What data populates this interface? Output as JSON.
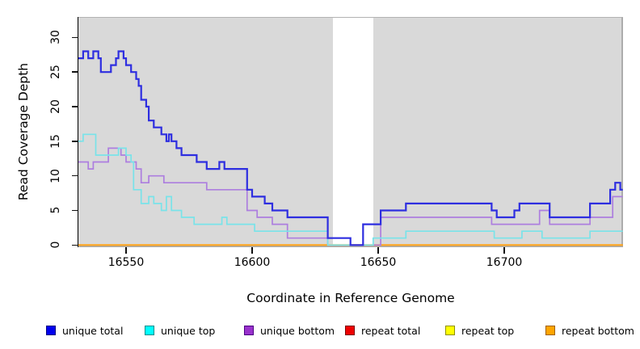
{
  "chart_data": {
    "type": "line",
    "subtype": "step",
    "title": "",
    "xlabel": "Coordinate in Reference Genome",
    "ylabel": "Read Coverage Depth",
    "xlim": [
      16531,
      16747
    ],
    "ylim": [
      0,
      33
    ],
    "xticks": [
      "16550",
      "16600",
      "16650",
      "16700"
    ],
    "xtick_values": [
      16550,
      16600,
      16650,
      16700
    ],
    "yticks": [
      "0",
      "5",
      "10",
      "15",
      "20",
      "25",
      "30"
    ],
    "ytick_values": [
      0,
      5,
      10,
      15,
      20,
      25,
      30
    ],
    "grid": false,
    "panel_background": "#d9d9d9",
    "gap_region": {
      "x_start": 16632,
      "x_end": 16648,
      "color": "#ffffff"
    },
    "legend_position": "bottom",
    "series": [
      {
        "name": "unique total",
        "color": "#2e2ee0",
        "legend_fill": "#0000ee",
        "legend_border": "#000080",
        "z": 6,
        "width": 2.2,
        "points": [
          [
            16531,
            27
          ],
          [
            16533,
            28
          ],
          [
            16535,
            27
          ],
          [
            16537,
            28
          ],
          [
            16539,
            27
          ],
          [
            16540,
            25
          ],
          [
            16544,
            26
          ],
          [
            16546,
            27
          ],
          [
            16547,
            28
          ],
          [
            16549,
            27
          ],
          [
            16550,
            26
          ],
          [
            16552,
            25
          ],
          [
            16554,
            24
          ],
          [
            16555,
            23
          ],
          [
            16556,
            21
          ],
          [
            16558,
            20
          ],
          [
            16559,
            18
          ],
          [
            16561,
            17
          ],
          [
            16564,
            16
          ],
          [
            16566,
            15
          ],
          [
            16567,
            16
          ],
          [
            16568,
            15
          ],
          [
            16570,
            14
          ],
          [
            16572,
            13
          ],
          [
            16578,
            12
          ],
          [
            16582,
            11
          ],
          [
            16587,
            12
          ],
          [
            16589,
            11
          ],
          [
            16598,
            8
          ],
          [
            16600,
            7
          ],
          [
            16605,
            6
          ],
          [
            16608,
            5
          ],
          [
            16614,
            4
          ],
          [
            16630,
            1
          ],
          [
            16639,
            0
          ],
          [
            16644,
            3
          ],
          [
            16648,
            3
          ],
          [
            16651,
            5
          ],
          [
            16661,
            6
          ],
          [
            16695,
            5
          ],
          [
            16697,
            4
          ],
          [
            16704,
            5
          ],
          [
            16706,
            6
          ],
          [
            16718,
            4
          ],
          [
            16734,
            6
          ],
          [
            16742,
            8
          ],
          [
            16744,
            9
          ],
          [
            16746,
            8
          ],
          [
            16747,
            8
          ]
        ]
      },
      {
        "name": "unique top",
        "color": "#79e3e9",
        "legend_fill": "#00ffff",
        "legend_border": "#008b8b",
        "z": 5,
        "width": 1.7,
        "points": [
          [
            16531,
            15
          ],
          [
            16533,
            16
          ],
          [
            16538,
            13
          ],
          [
            16547,
            14
          ],
          [
            16550,
            13
          ],
          [
            16552,
            12
          ],
          [
            16553,
            8
          ],
          [
            16556,
            6
          ],
          [
            16559,
            7
          ],
          [
            16561,
            6
          ],
          [
            16564,
            5
          ],
          [
            16566,
            7
          ],
          [
            16568,
            5
          ],
          [
            16572,
            4
          ],
          [
            16577,
            3
          ],
          [
            16588,
            4
          ],
          [
            16590,
            3
          ],
          [
            16601,
            2
          ],
          [
            16630,
            0
          ],
          [
            16648,
            1
          ],
          [
            16661,
            2
          ],
          [
            16696,
            1
          ],
          [
            16707,
            2
          ],
          [
            16715,
            1
          ],
          [
            16734,
            2
          ],
          [
            16747,
            2
          ]
        ]
      },
      {
        "name": "unique bottom",
        "color": "#ad7edf",
        "legend_fill": "#9932cc",
        "legend_border": "#4b0082",
        "z": 4,
        "width": 1.7,
        "points": [
          [
            16531,
            12
          ],
          [
            16535,
            11
          ],
          [
            16537,
            12
          ],
          [
            16543,
            14
          ],
          [
            16548,
            13
          ],
          [
            16550,
            12
          ],
          [
            16554,
            11
          ],
          [
            16556,
            9
          ],
          [
            16559,
            10
          ],
          [
            16565,
            9
          ],
          [
            16582,
            8
          ],
          [
            16598,
            5
          ],
          [
            16602,
            4
          ],
          [
            16608,
            3
          ],
          [
            16614,
            1
          ],
          [
            16630,
            0
          ],
          [
            16651,
            4
          ],
          [
            16695,
            3
          ],
          [
            16714,
            5
          ],
          [
            16718,
            3
          ],
          [
            16734,
            4
          ],
          [
            16743,
            7
          ],
          [
            16747,
            7
          ]
        ]
      },
      {
        "name": "repeat total",
        "color": "#dd2222",
        "legend_fill": "#ee0000",
        "legend_border": "#7a0000",
        "z": 1,
        "width": 1.7,
        "points": [
          [
            16531,
            0
          ],
          [
            16747,
            0
          ]
        ]
      },
      {
        "name": "repeat top",
        "color": "#e8e820",
        "legend_fill": "#ffff00",
        "legend_border": "#8f8f00",
        "z": 2,
        "width": 1.7,
        "points": [
          [
            16531,
            0
          ],
          [
            16747,
            0
          ]
        ]
      },
      {
        "name": "repeat bottom",
        "color": "#ffa51e",
        "legend_fill": "#ffa500",
        "legend_border": "#a06000",
        "z": 3,
        "width": 2,
        "points": [
          [
            16531,
            0
          ],
          [
            16747,
            0
          ]
        ]
      }
    ]
  },
  "legend_item_lefts": [
    57,
    179,
    302,
    427,
    551,
    675
  ]
}
